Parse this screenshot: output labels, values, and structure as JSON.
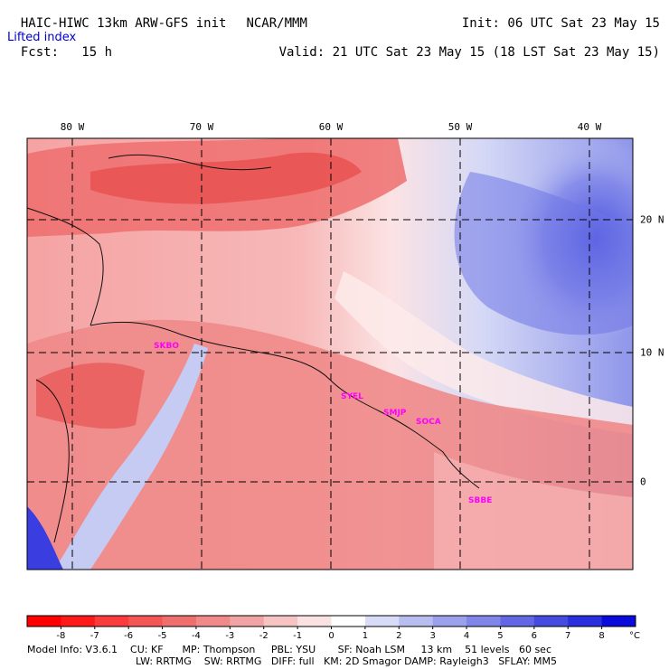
{
  "header": {
    "model_line": "HAIC-HIWC 13km ARW-GFS init",
    "org": "NCAR/MMM",
    "init": "Init: 06 UTC Sat 23 May 15",
    "fcst": "Fcst:   15 h",
    "valid": "Valid: 21 UTC Sat 23 May 15 (18 LST Sat 23 May 15)",
    "field": "Lifted index"
  },
  "map": {
    "lon_labels": [
      "80 W",
      "70 W",
      "60 W",
      "50 W",
      "40 W"
    ],
    "lat_labels": [
      "20 N",
      "10 N",
      "0"
    ],
    "stations": [
      "SKBO",
      "SYEL",
      "SMJP",
      "SOCA",
      "SBBE"
    ],
    "station_color": "#ff00ff"
  },
  "colorbar": {
    "tick_labels": [
      "-8",
      "-7",
      "-6",
      "-5",
      "-4",
      "-3",
      "-2",
      "-1",
      "0",
      "1",
      "2",
      "3",
      "4",
      "5",
      "6",
      "7",
      "8"
    ],
    "unit": "°C",
    "colors": [
      "#ff0000",
      "#ff1a1a",
      "#fb3c3c",
      "#f45555",
      "#ef6f6f",
      "#f08a8a",
      "#f2a3a3",
      "#f7c4c4",
      "#fbe2e2",
      "#ffffff",
      "#d8dcf6",
      "#b8bdf0",
      "#9aa0ec",
      "#7f86e8",
      "#6268e4",
      "#454bde",
      "#2a2edc",
      "#0a0adc"
    ]
  },
  "footer": {
    "line1": "Model Info: V3.6.1    CU: KF      MP: Thompson     PBL: YSU       SF: Noah LSM     13 km    51 levels   60 sec",
    "line2": "LW: RRTMG    SW: RRTMG   DIFF: full   KM: 2D Smagor DAMP: Rayleigh3   SFLAY: MM5"
  }
}
